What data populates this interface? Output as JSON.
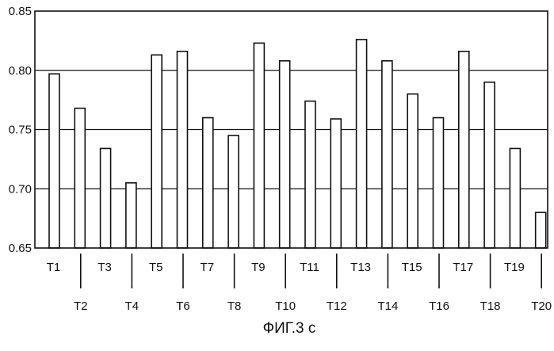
{
  "chart_data": {
    "type": "bar",
    "title": "",
    "xlabel": "",
    "ylabel": "",
    "ylim": [
      0.65,
      0.85
    ],
    "yticks": [
      "0.65",
      "0.70",
      "0.75",
      "0.80",
      "0.85"
    ],
    "grid": true,
    "legend": "none",
    "categories": [
      "T1",
      "T2",
      "T3",
      "T4",
      "T5",
      "T6",
      "T7",
      "T8",
      "T9",
      "T10",
      "T11",
      "T12",
      "T13",
      "T14",
      "T15",
      "T16",
      "T17",
      "T18",
      "T19",
      "T20"
    ],
    "values": [
      0.797,
      0.768,
      0.734,
      0.705,
      0.813,
      0.816,
      0.76,
      0.745,
      0.823,
      0.808,
      0.774,
      0.759,
      0.826,
      0.808,
      0.78,
      0.76,
      0.816,
      0.79,
      0.734,
      0.68
    ]
  },
  "caption": "ФИГ.3 с"
}
